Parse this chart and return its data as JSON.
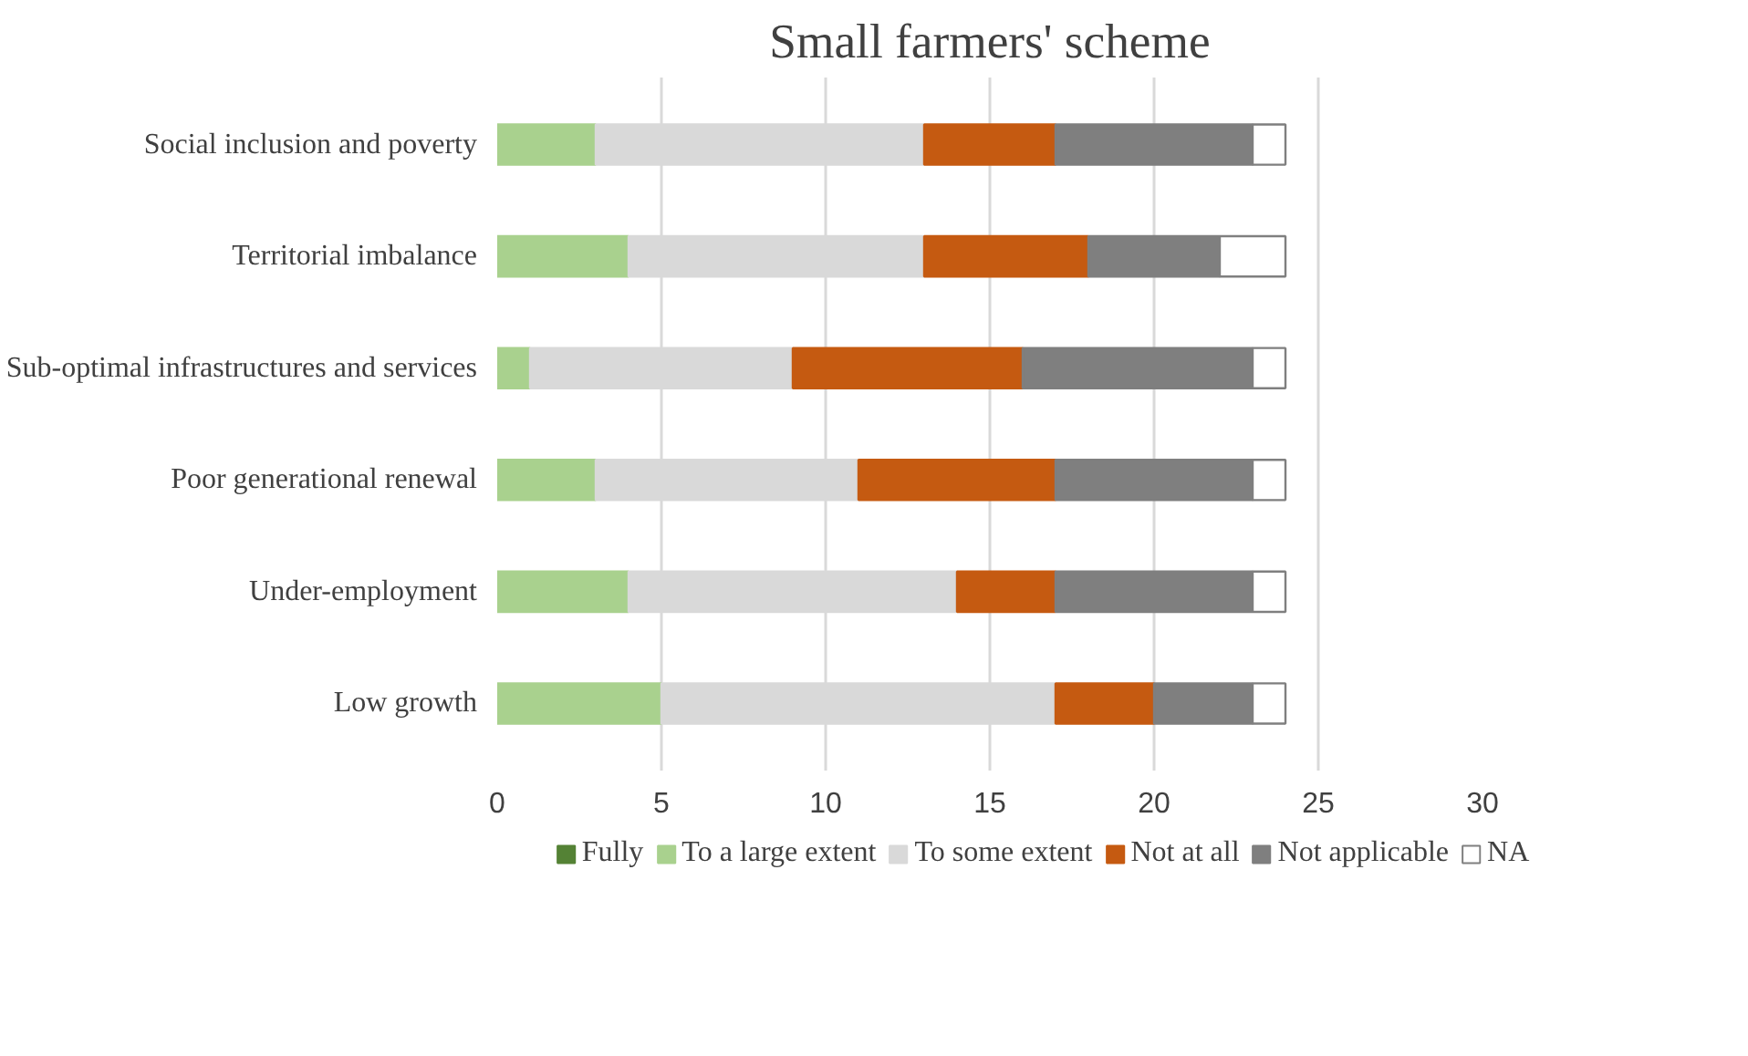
{
  "chart_data": {
    "type": "bar",
    "title": "Small farmers' scheme",
    "orientation": "horizontal",
    "stacked": true,
    "categories": [
      "Social inclusion and poverty",
      "Territorial imbalance",
      "Sub-optimal infrastructures and services",
      "Poor generational renewal",
      "Under-employment",
      "Low growth"
    ],
    "series": [
      {
        "name": "Fully",
        "color": "#548235",
        "values": [
          0,
          0,
          0,
          0,
          0,
          0
        ]
      },
      {
        "name": "To a large extent",
        "color": "#a9d18e",
        "values": [
          3,
          4,
          1,
          3,
          4,
          5
        ]
      },
      {
        "name": "To some extent",
        "color": "#d9d9d9",
        "values": [
          10,
          9,
          8,
          8,
          10,
          12
        ]
      },
      {
        "name": "Not at all",
        "color": "#c55a11",
        "values": [
          4,
          5,
          7,
          6,
          3,
          3
        ]
      },
      {
        "name": "Not applicable",
        "color": "#7f7f7f",
        "values": [
          6,
          4,
          7,
          6,
          6,
          3
        ]
      },
      {
        "name": "NA",
        "color": "#ffffff",
        "values": [
          1,
          2,
          1,
          1,
          1,
          1
        ]
      }
    ],
    "xlim": [
      0,
      30
    ],
    "xticks": [
      0,
      5,
      10,
      15,
      20,
      25,
      30
    ],
    "grid": "x",
    "legend": "bottom"
  }
}
